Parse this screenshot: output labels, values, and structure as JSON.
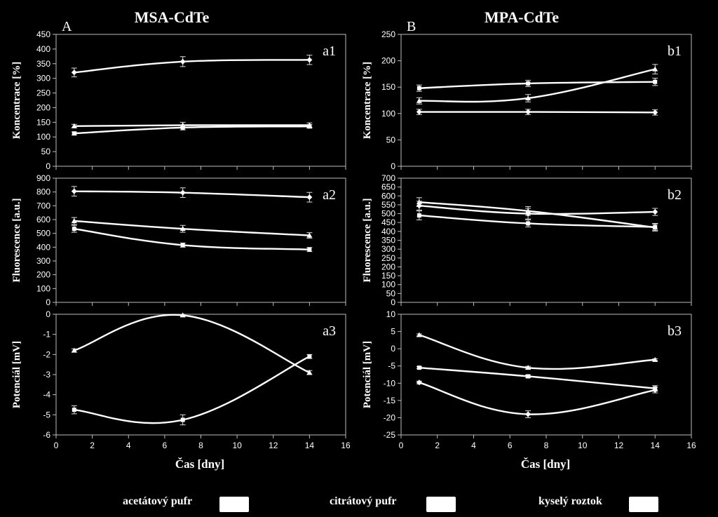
{
  "figure": {
    "title_left": "MSA-CdTe",
    "title_right": "MPA-CdTe",
    "label_left": "A",
    "label_right": "B",
    "xlabel": "Čas [dny]",
    "x_ticks": [
      "0",
      "2",
      "4",
      "6",
      "8",
      "10",
      "12",
      "14",
      "16"
    ]
  },
  "legend": {
    "items": [
      "acetátový pufr",
      "citrátový pufr",
      "kyselý roztok"
    ]
  },
  "chart_data": [
    {
      "id": "a1",
      "type": "line",
      "panel_label": "a1",
      "ylabel": "Koncentrace [%]",
      "ylim": [
        0,
        450
      ],
      "y_ticks": [
        "0",
        "50",
        "100",
        "150",
        "200",
        "250",
        "300",
        "350",
        "400",
        "450"
      ],
      "xlim": [
        0,
        16
      ],
      "x": [
        1,
        7,
        14
      ],
      "series": [
        {
          "name": "acetátový pufr",
          "marker": "triangle",
          "values": [
            137,
            140,
            140
          ],
          "errors": [
            6,
            10,
            8
          ]
        },
        {
          "name": "citrátový pufr",
          "marker": "square",
          "values": [
            112,
            132,
            136
          ],
          "errors": [
            5,
            8,
            6
          ]
        },
        {
          "name": "kyselý roztok",
          "marker": "diamond",
          "values": [
            320,
            357,
            363
          ],
          "errors": [
            15,
            17,
            16
          ]
        }
      ]
    },
    {
      "id": "a2",
      "type": "line",
      "panel_label": "a2",
      "ylabel": "Fluorescence [a.u.]",
      "ylim": [
        0,
        900
      ],
      "y_ticks": [
        "0",
        "100",
        "200",
        "300",
        "400",
        "500",
        "600",
        "700",
        "800",
        "900"
      ],
      "xlim": [
        0,
        16
      ],
      "x": [
        1,
        7,
        14
      ],
      "series": [
        {
          "name": "acetátový pufr",
          "marker": "triangle",
          "values": [
            590,
            533,
            485
          ],
          "errors": [
            25,
            25,
            20
          ]
        },
        {
          "name": "citrátový pufr",
          "marker": "square",
          "values": [
            533,
            415,
            383
          ],
          "errors": [
            25,
            15,
            15
          ]
        },
        {
          "name": "kyselý roztok",
          "marker": "diamond",
          "values": [
            805,
            795,
            762
          ],
          "errors": [
            35,
            35,
            35
          ]
        }
      ]
    },
    {
      "id": "a3",
      "type": "line",
      "panel_label": "a3",
      "ylabel": "Potenciál [mV]",
      "ylim": [
        -6,
        0
      ],
      "y_ticks": [
        "-6",
        "-5",
        "-4",
        "-3",
        "-2",
        "-1",
        "0"
      ],
      "xlim": [
        0,
        16
      ],
      "x": [
        1,
        7,
        14
      ],
      "series": [
        {
          "name": "acetátový pufr",
          "marker": "triangle",
          "values": [
            -1.8,
            -0.05,
            -2.9
          ],
          "errors": [
            0.08,
            0.05,
            0.1
          ]
        },
        {
          "name": "citrátový pufr",
          "marker": "square",
          "values": [
            -4.75,
            -5.25,
            -2.1
          ],
          "errors": [
            0.2,
            0.25,
            0.1
          ]
        }
      ]
    },
    {
      "id": "b1",
      "type": "line",
      "panel_label": "b1",
      "ylabel": "Koncentrace [%]",
      "ylim": [
        0,
        250
      ],
      "y_ticks": [
        "0",
        "50",
        "100",
        "150",
        "200",
        "250"
      ],
      "xlim": [
        0,
        16
      ],
      "x": [
        1,
        7,
        14
      ],
      "series": [
        {
          "name": "acetátový pufr",
          "marker": "triangle",
          "values": [
            124,
            129,
            184
          ],
          "errors": [
            6,
            7,
            9
          ]
        },
        {
          "name": "citrátový pufr",
          "marker": "square",
          "values": [
            148,
            157,
            160
          ],
          "errors": [
            6,
            6,
            7
          ]
        },
        {
          "name": "kyselý roztok",
          "marker": "diamond",
          "values": [
            103,
            103,
            102
          ],
          "errors": [
            5,
            5,
            5
          ]
        }
      ]
    },
    {
      "id": "b2",
      "type": "line",
      "panel_label": "b2",
      "ylabel": "Fluorescence [a.u.]",
      "ylim": [
        0,
        700
      ],
      "y_ticks": [
        "0",
        "50",
        "100",
        "150",
        "200",
        "250",
        "300",
        "350",
        "400",
        "450",
        "500",
        "550",
        "600",
        "650",
        "700"
      ],
      "xlim": [
        0,
        16
      ],
      "x": [
        1,
        7,
        14
      ],
      "series": [
        {
          "name": "acetátový pufr",
          "marker": "triangle",
          "values": [
            565,
            515,
            422
          ],
          "errors": [
            25,
            25,
            20
          ]
        },
        {
          "name": "citrátový pufr",
          "marker": "square",
          "values": [
            490,
            445,
            425
          ],
          "errors": [
            25,
            20,
            20
          ]
        },
        {
          "name": "kyselý roztok",
          "marker": "diamond",
          "values": [
            545,
            500,
            510
          ],
          "errors": [
            25,
            30,
            20
          ]
        }
      ]
    },
    {
      "id": "b3",
      "type": "line",
      "panel_label": "b3",
      "ylabel": "Potenciál [mV]",
      "ylim": [
        -25,
        10
      ],
      "y_ticks": [
        "-25",
        "-20",
        "-15",
        "-10",
        "-5",
        "0",
        "5",
        "10"
      ],
      "xlim": [
        0,
        16
      ],
      "x": [
        1,
        7,
        14
      ],
      "series": [
        {
          "name": "acetátový pufr",
          "marker": "triangle",
          "values": [
            4,
            -5.5,
            -3.2
          ],
          "errors": [
            0.3,
            0.4,
            0.3
          ]
        },
        {
          "name": "citrátový pufr",
          "marker": "square",
          "values": [
            -5.5,
            -8,
            -11.5
          ],
          "errors": [
            0.3,
            0.4,
            0.8
          ]
        },
        {
          "name": "kyselý roztok",
          "marker": "diamond",
          "values": [
            -9.8,
            -19,
            -12
          ],
          "errors": [
            0.4,
            1,
            0.8
          ]
        }
      ]
    }
  ]
}
